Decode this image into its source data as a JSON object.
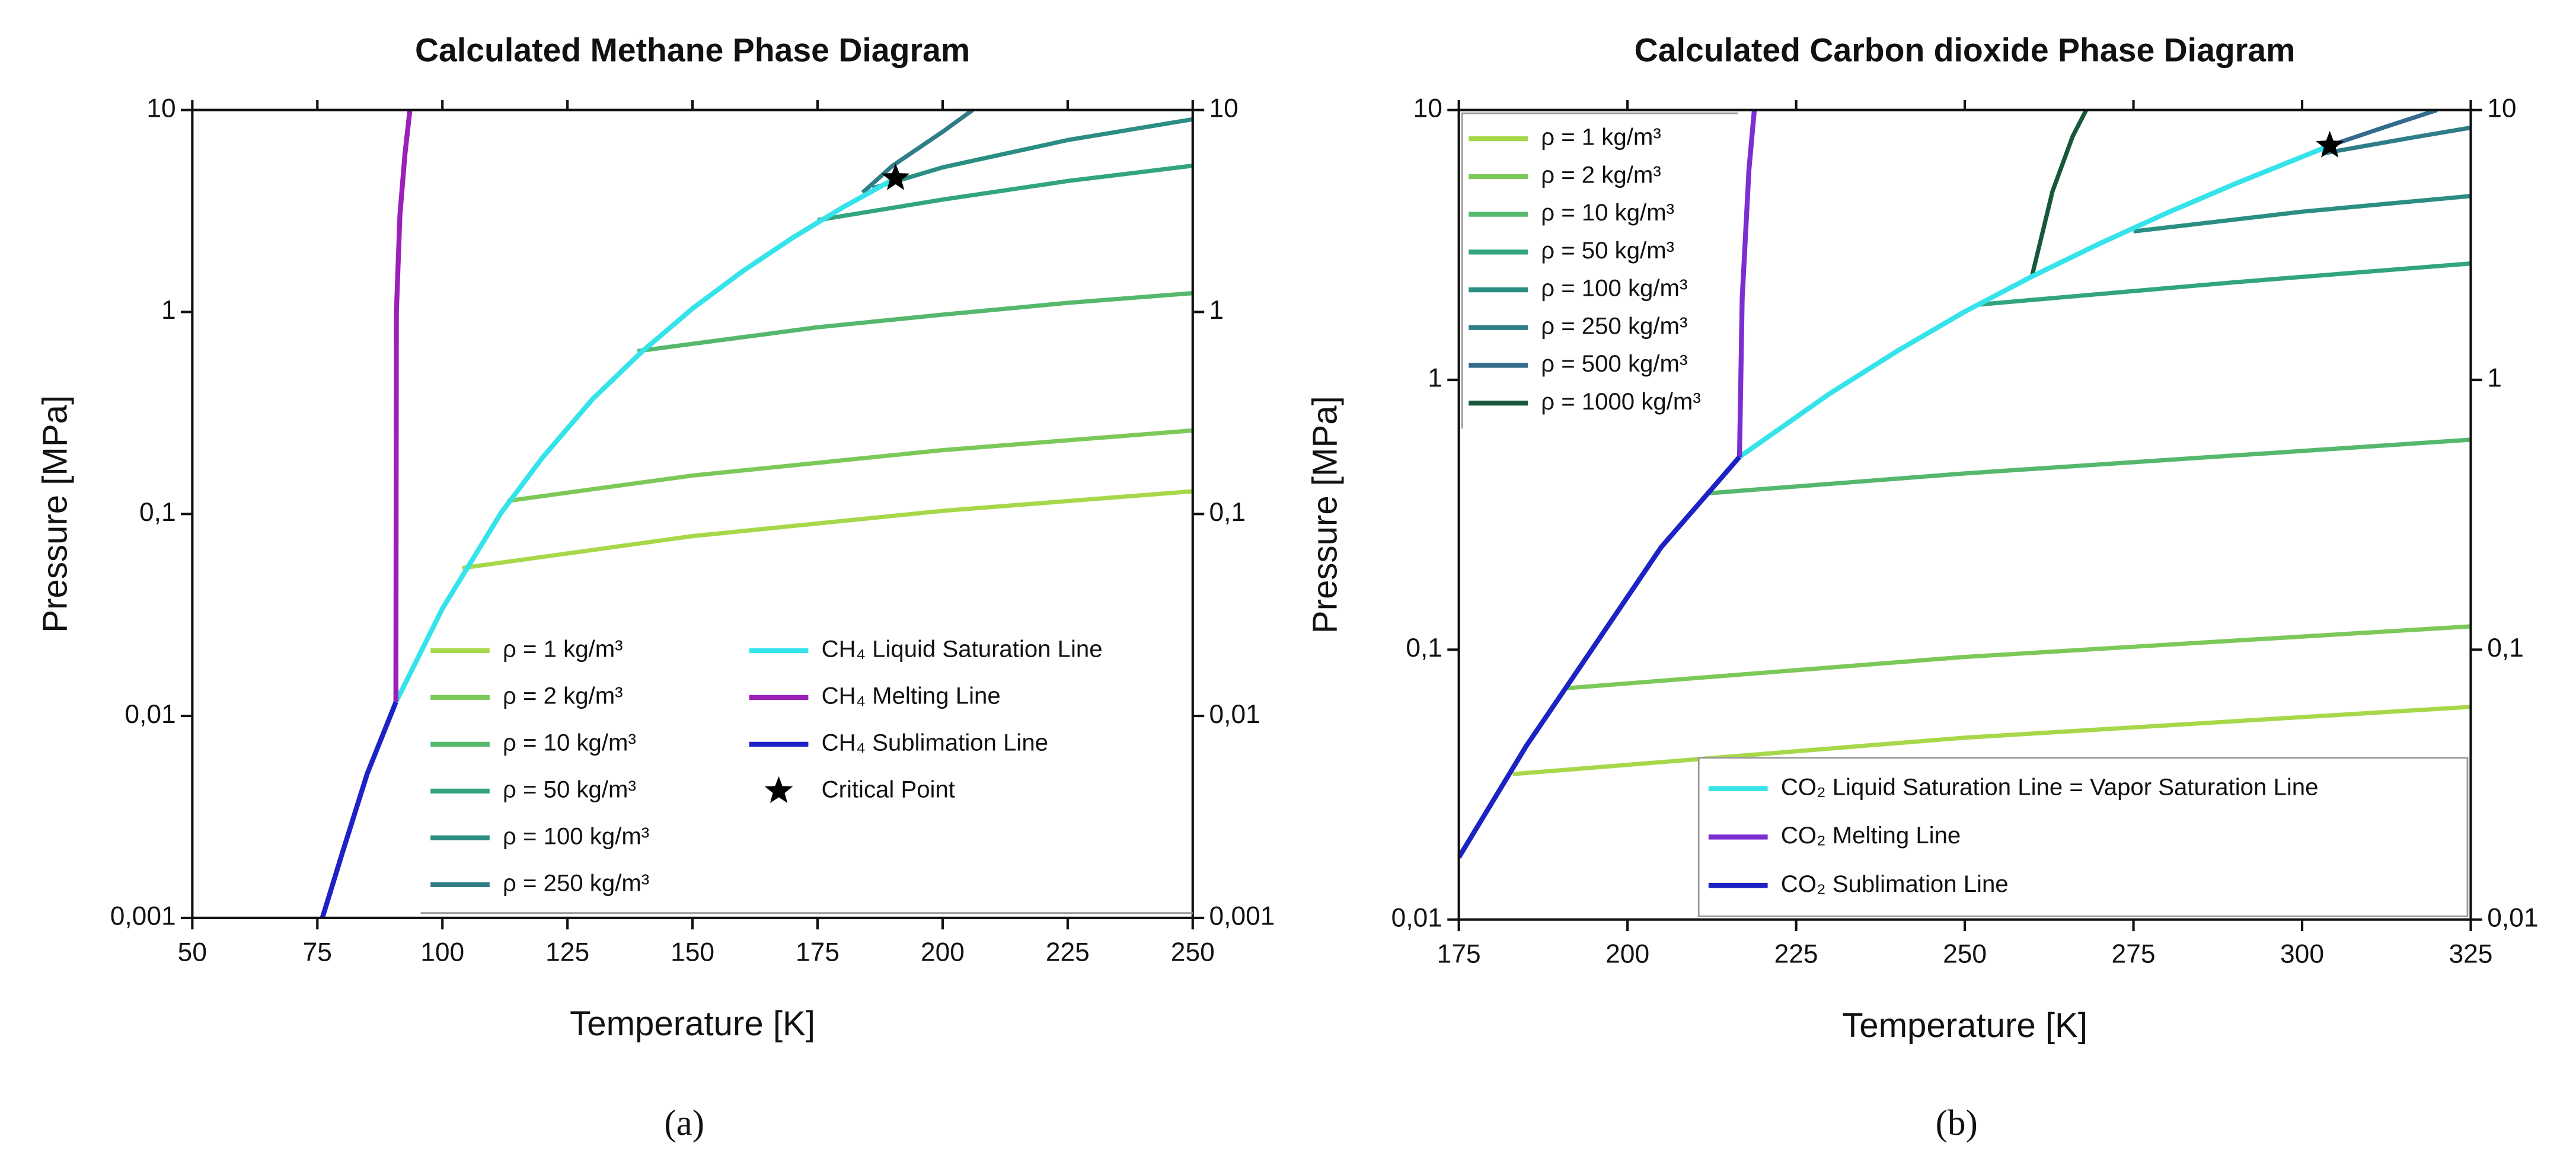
{
  "chart_data": [
    {
      "type": "line",
      "title": "Calculated Methane Phase Diagram",
      "panel_label": "(a)",
      "x_label": "Temperature [K]",
      "y_label": "Pressure [MPa]",
      "xlim": [
        50,
        250
      ],
      "xticks": [
        50,
        75,
        100,
        125,
        150,
        175,
        200,
        225,
        250
      ],
      "ylim": [
        0.001,
        10
      ],
      "yscale": "log",
      "yticks": [
        {
          "value": 0.001,
          "label": "0,001"
        },
        {
          "value": 0.01,
          "label": "0,01"
        },
        {
          "value": 0.1,
          "label": "0,1"
        },
        1,
        10
      ],
      "legend": "lower right",
      "series": [
        {
          "name": "ρ =    1 kg/m³",
          "color": "#a6d84a",
          "x": [
            104,
            150,
            200,
            250
          ],
          "values": [
            0.054,
            0.0777,
            0.1036,
            0.1295
          ]
        },
        {
          "name": "ρ =    2 kg/m³",
          "color": "#7cc95a",
          "x": [
            113,
            150,
            200,
            250
          ],
          "values": [
            0.116,
            0.155,
            0.207,
            0.259
          ]
        },
        {
          "name": "ρ =  10 kg/m³",
          "color": "#55b86c",
          "x": [
            139,
            175,
            200,
            225,
            250
          ],
          "values": [
            0.64,
            0.84,
            0.97,
            1.11,
            1.24
          ]
        },
        {
          "name": "ρ =  50 kg/m³",
          "color": "#33a57e",
          "x": [
            175,
            200,
            225,
            250
          ],
          "values": [
            2.85,
            3.6,
            4.45,
            5.3
          ]
        },
        {
          "name": "ρ = 100 kg/m³",
          "color": "#2a8e82",
          "x": [
            186,
            200,
            225,
            250
          ],
          "values": [
            4.1,
            5.2,
            7.1,
            9.0
          ]
        },
        {
          "name": "ρ = 250 kg/m³",
          "color": "#2f7d88",
          "x": [
            184,
            190,
            200,
            206
          ],
          "values": [
            3.9,
            5.3,
            7.8,
            10
          ]
        }
      ],
      "lines": [
        {
          "name": "CH₄ Liquid Saturation Line",
          "color": "#35e3ea",
          "x": [
            90.7,
            100,
            111.7,
            120,
            130,
            140,
            150,
            160,
            170,
            180,
            190.6
          ],
          "values": [
            0.0117,
            0.034,
            0.101,
            0.19,
            0.37,
            0.64,
            1.04,
            1.59,
            2.33,
            3.29,
            4.6
          ]
        },
        {
          "name": "CH₄ Melting Line",
          "color": "#9b1fb8",
          "x": [
            90.7,
            90.8,
            91.5,
            92.5,
            93.5
          ],
          "values": [
            0.0117,
            1,
            3,
            6,
            10
          ]
        },
        {
          "name": "CH₄ Sublimation Line",
          "color": "#1c22c4",
          "x": [
            76,
            80,
            85,
            90.7
          ],
          "values": [
            0.001,
            0.0021,
            0.0052,
            0.0117
          ]
        },
        {
          "name": "Critical Point",
          "color": "#000000",
          "marker": "star",
          "x": [
            190.6
          ],
          "values": [
            4.6
          ]
        }
      ]
    },
    {
      "type": "line",
      "title": "Calculated Carbon dioxide Phase Diagram",
      "panel_label": "(b)",
      "x_label": "Temperature [K]",
      "y_label": "Pressure [MPa]",
      "xlim": [
        175,
        325
      ],
      "xticks": [
        175,
        200,
        225,
        250,
        275,
        300,
        325
      ],
      "ylim": [
        0.01,
        10
      ],
      "yscale": "log",
      "yticks": [
        {
          "value": 0.01,
          "label": "0,01"
        },
        {
          "value": 0.1,
          "label": "0,1"
        },
        1,
        10
      ],
      "legend": "upper left",
      "lines_legend": "lower right",
      "series": [
        {
          "name": "ρ =     1 kg/m³",
          "color": "#a6d84a",
          "x": [
            183,
            250,
            325
          ],
          "values": [
            0.0346,
            0.0472,
            0.0614
          ]
        },
        {
          "name": "ρ =     2 kg/m³",
          "color": "#7cc95a",
          "x": [
            191,
            250,
            325
          ],
          "values": [
            0.072,
            0.094,
            0.122
          ]
        },
        {
          "name": "ρ =   10 kg/m³",
          "color": "#55b86c",
          "x": [
            212,
            250,
            325
          ],
          "values": [
            0.38,
            0.45,
            0.6
          ]
        },
        {
          "name": "ρ =   50 kg/m³",
          "color": "#33a57e",
          "x": [
            252,
            290,
            325
          ],
          "values": [
            1.9,
            2.3,
            2.7
          ]
        },
        {
          "name": "ρ =   100 kg/m³",
          "color": "#2a8e82",
          "x": [
            275,
            300,
            325
          ],
          "values": [
            3.55,
            4.2,
            4.8
          ]
        },
        {
          "name": "ρ =   250 kg/m³",
          "color": "#2f7d88",
          "x": [
            303,
            315,
            325
          ],
          "values": [
            6.9,
            7.8,
            8.6
          ]
        },
        {
          "name": "ρ =   500 kg/m³",
          "color": "#336b8c",
          "x": [
            304.1,
            312,
            320
          ],
          "values": [
            7.38,
            8.6,
            10
          ]
        },
        {
          "name": "ρ = 1000 kg/m³",
          "color": "#17573a",
          "x": [
            260,
            263,
            266,
            268
          ],
          "values": [
            2.45,
            5,
            8,
            10
          ]
        }
      ],
      "lines": [
        {
          "name": "CO₂ Liquid Saturation Line = Vapor Saturation Line",
          "color": "#35e3ea",
          "x": [
            216.6,
            230,
            240,
            250,
            260,
            270,
            280,
            290,
            300,
            304.1
          ],
          "values": [
            0.518,
            0.89,
            1.28,
            1.79,
            2.42,
            3.2,
            4.16,
            5.32,
            6.71,
            7.38
          ]
        },
        {
          "name": "CO₂ Melting Line",
          "color": "#7b2fd1",
          "x": [
            216.6,
            217,
            218,
            218.8
          ],
          "values": [
            0.518,
            2,
            6,
            10
          ]
        },
        {
          "name": "CO₂ Sublimation Line",
          "color": "#1c22c4",
          "x": [
            175,
            185,
            194.7,
            205,
            216.6
          ],
          "values": [
            0.017,
            0.044,
            0.1,
            0.24,
            0.518
          ]
        },
        {
          "color": "#000000",
          "marker": "star",
          "x": [
            304.1
          ],
          "values": [
            7.38
          ]
        }
      ]
    }
  ]
}
